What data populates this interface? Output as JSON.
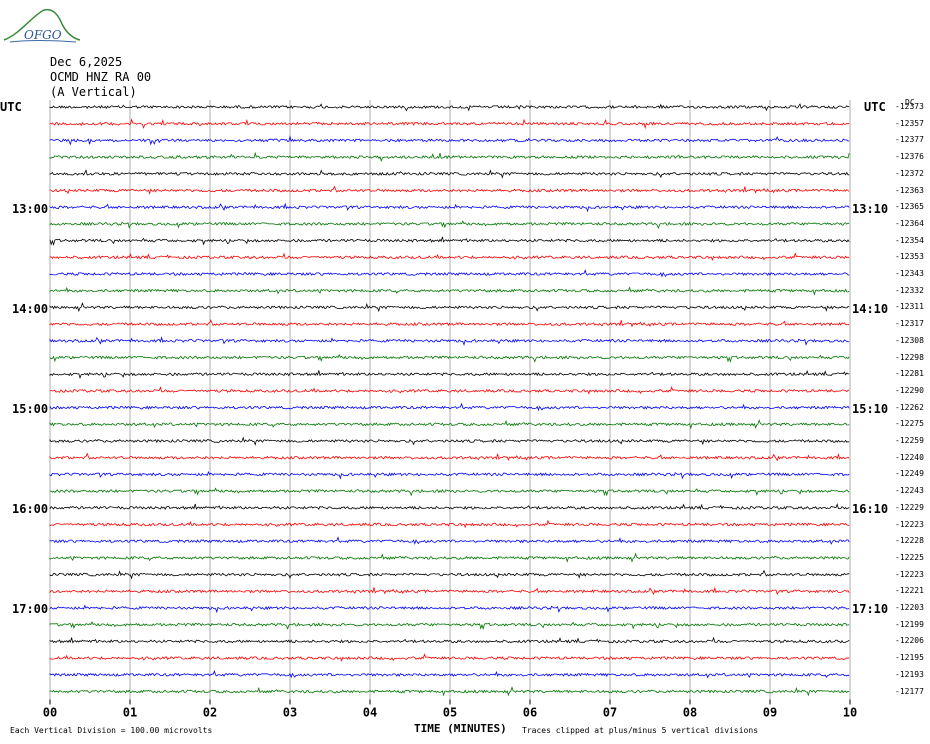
{
  "header": {
    "logo_text": "OFGO",
    "date": "Dec 6,2025",
    "station": "OCMD HNZ RA 00",
    "component": "(A Vertical)"
  },
  "left_axis": {
    "unit": "UTC",
    "hour_labels": [
      "13:00",
      "14:00",
      "15:00",
      "16:00",
      "17:00"
    ]
  },
  "right_axis": {
    "unit": "UTC",
    "top_tag": "DC",
    "hour_labels": [
      "13:10",
      "14:10",
      "15:10",
      "16:10",
      "17:10"
    ]
  },
  "footer": {
    "xlabel": "TIME (MINUTES)",
    "scale_note": "Each Vertical Division =  100.00 microvolts",
    "clip_note": "Traces clipped at plus/minus 5 vertical divisions"
  },
  "chart_data": {
    "type": "line",
    "xlabel": "TIME (MINUTES)",
    "xlim": [
      0,
      10
    ],
    "x_ticks": [
      "00",
      "01",
      "02",
      "03",
      "04",
      "05",
      "06",
      "07",
      "08",
      "09",
      "10"
    ],
    "trace_colors": [
      "#000000",
      "#ff0000",
      "#0000ff",
      "#007700"
    ],
    "dc_offsets": [
      -12373,
      -12357,
      -12377,
      -12376,
      -12372,
      -12363,
      -12365,
      -12364,
      -12354,
      -12353,
      -12343,
      -12332,
      -12311,
      -12317,
      -12308,
      -12298,
      -12281,
      -12290,
      -12262,
      -12275,
      -12259,
      -12240,
      -12249,
      -12243,
      -12229,
      -12223,
      -12228,
      -12225,
      -12223,
      -12221,
      -12203,
      -12199,
      -12206,
      -12195,
      -12193,
      -12177
    ],
    "grid": true
  }
}
